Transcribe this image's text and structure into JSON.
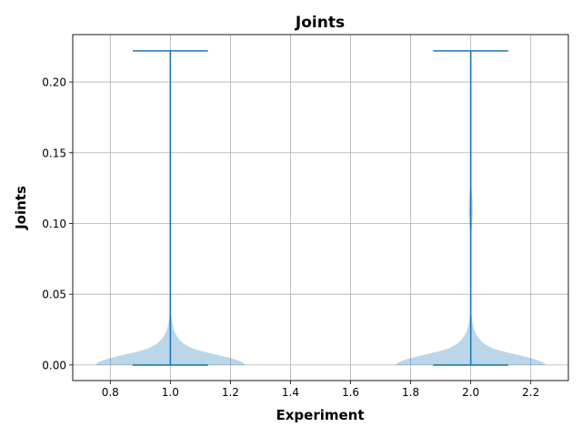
{
  "chart_data": {
    "type": "violin",
    "title": "Joints",
    "xlabel": "Experiment",
    "ylabel": "Joints",
    "xlim": [
      0.675,
      2.325
    ],
    "ylim": [
      -0.011,
      0.2335
    ],
    "xticks": [
      0.8,
      1.0,
      1.2,
      1.4,
      1.6,
      1.8,
      2.0,
      2.2
    ],
    "xtick_labels": [
      "0.8",
      "1.0",
      "1.2",
      "1.4",
      "1.6",
      "1.8",
      "2.0",
      "2.2"
    ],
    "yticks": [
      0.0,
      0.05,
      0.1,
      0.15,
      0.2
    ],
    "ytick_labels": [
      "0.00",
      "0.05",
      "0.10",
      "0.15",
      "0.20"
    ],
    "grid": true,
    "colors": {
      "body": "#1f77b4",
      "body_alpha": 0.3,
      "lines": "#1f77b4",
      "grid": "#b0b0b0"
    },
    "violins": [
      {
        "position": 1.0,
        "min": 0.0,
        "max": 0.222,
        "density": [
          [
            0.0,
            0.25
          ],
          [
            0.002,
            0.24
          ],
          [
            0.004,
            0.215
          ],
          [
            0.006,
            0.18
          ],
          [
            0.008,
            0.14
          ],
          [
            0.01,
            0.1
          ],
          [
            0.012,
            0.07
          ],
          [
            0.015,
            0.045
          ],
          [
            0.018,
            0.03
          ],
          [
            0.021,
            0.02
          ],
          [
            0.024,
            0.013
          ],
          [
            0.027,
            0.009
          ],
          [
            0.03,
            0.006
          ],
          [
            0.033,
            0.004
          ],
          [
            0.036,
            0.002
          ],
          [
            0.04,
            0.0007
          ],
          [
            0.045,
            0.0002
          ],
          [
            0.055,
            5e-05
          ],
          [
            0.222,
            1e-05
          ]
        ]
      },
      {
        "position": 2.0,
        "min": 0.0,
        "max": 0.222,
        "density": [
          [
            0.0,
            0.25
          ],
          [
            0.002,
            0.24
          ],
          [
            0.004,
            0.215
          ],
          [
            0.006,
            0.18
          ],
          [
            0.008,
            0.14
          ],
          [
            0.01,
            0.1
          ],
          [
            0.012,
            0.07
          ],
          [
            0.015,
            0.045
          ],
          [
            0.018,
            0.03
          ],
          [
            0.021,
            0.02
          ],
          [
            0.024,
            0.013
          ],
          [
            0.027,
            0.009
          ],
          [
            0.03,
            0.006
          ],
          [
            0.033,
            0.004
          ],
          [
            0.036,
            0.002
          ],
          [
            0.04,
            0.0007
          ],
          [
            0.05,
            0.0001
          ],
          [
            0.09,
            5e-05
          ],
          [
            0.096,
            0.003
          ],
          [
            0.104,
            0.006
          ],
          [
            0.11,
            0.007
          ],
          [
            0.116,
            0.006
          ],
          [
            0.124,
            0.003
          ],
          [
            0.13,
            5e-05
          ],
          [
            0.222,
            1e-05
          ]
        ]
      }
    ]
  }
}
